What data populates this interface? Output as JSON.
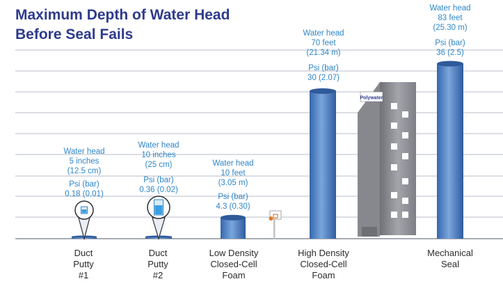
{
  "title": [
    "Maximum Depth of Water Head",
    "Before Seal Fails"
  ],
  "colors": {
    "title": "#2e3b8c",
    "label": "#2f86c8",
    "bar": "#4a7fc4",
    "grid": "#b9bec8",
    "category": "#2b2b2b",
    "building": "#8e9096"
  },
  "icons": [
    "water-glass-icon",
    "basketball-hoop-icon",
    "building-icon"
  ],
  "building_sign": "Polywater",
  "chart_data": {
    "type": "bar",
    "title": "Maximum Depth of Water Head Before Seal Fails",
    "categories": [
      [
        "Duct",
        "Putty",
        "#1"
      ],
      [
        "Duct",
        "Putty",
        "#2"
      ],
      [
        "Low Density",
        "Closed-Cell",
        "Foam"
      ],
      [
        "High Density",
        "Closed-Cell",
        "Foam"
      ],
      [
        "Mechanical",
        "Seal"
      ]
    ],
    "values_feet": [
      0.42,
      0.83,
      10,
      70,
      83
    ],
    "grid": true,
    "bars": [
      {
        "head": [
          "Water head",
          "5 inches",
          "(12.5 cm)"
        ],
        "psi": [
          "Psi (bar)",
          "0.18 (0.01)"
        ]
      },
      {
        "head": [
          "Water head",
          "10 inches",
          "(25 cm)"
        ],
        "psi": [
          "Psi (bar)",
          "0.36 (0.02)"
        ]
      },
      {
        "head": [
          "Water head",
          "10 feet",
          "(3.05 m)"
        ],
        "psi": [
          "Psi (bar)",
          "4.3 (0.30)"
        ]
      },
      {
        "head": [
          "Water head",
          "70 feet",
          "(21.34 m)"
        ],
        "psi": [
          "Psi (bar)",
          "30 (2.07)"
        ]
      },
      {
        "head": [
          "Water head",
          "83 feet",
          "(25.30 m)"
        ],
        "psi": [
          "Psi (bar)",
          "36 (2.5)"
        ]
      }
    ]
  }
}
